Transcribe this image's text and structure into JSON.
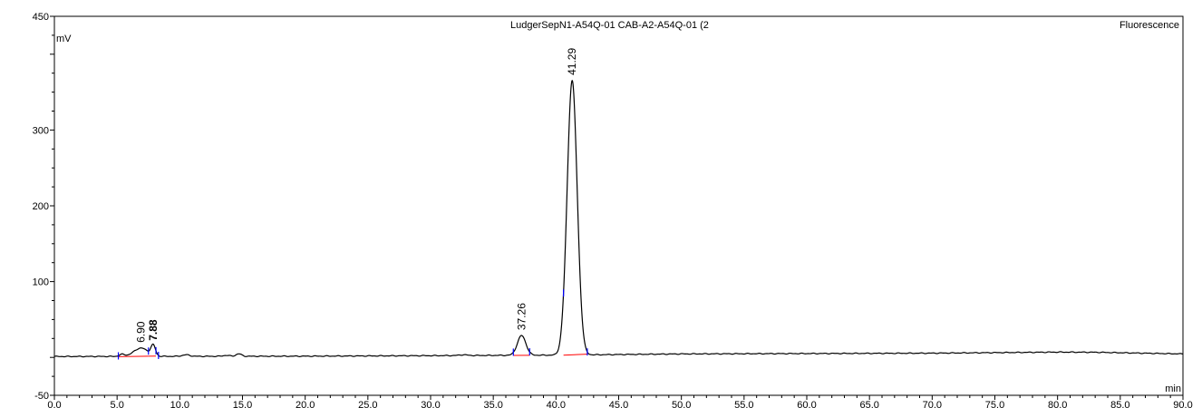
{
  "header": {
    "title": "LudgerSepN1-A54Q-01 CAB-A2-A54Q-01 (2",
    "detector": "Fluorescence"
  },
  "chart_data": {
    "type": "line",
    "xlabel": "min",
    "ylabel": "mV",
    "xlim": [
      0,
      90
    ],
    "ylim": [
      -50,
      450
    ],
    "x_ticks": [
      {
        "value": 0,
        "label": "0.0"
      },
      {
        "value": 5,
        "label": "5.0"
      },
      {
        "value": 10,
        "label": "10.0"
      },
      {
        "value": 15,
        "label": "15.0"
      },
      {
        "value": 20,
        "label": "20.0"
      },
      {
        "value": 25,
        "label": "25.0"
      },
      {
        "value": 30,
        "label": "30.0"
      },
      {
        "value": 35,
        "label": "35.0"
      },
      {
        "value": 40,
        "label": "40.0"
      },
      {
        "value": 45,
        "label": "45.0"
      },
      {
        "value": 50,
        "label": "50.0"
      },
      {
        "value": 55,
        "label": "55.0"
      },
      {
        "value": 60,
        "label": "60.0"
      },
      {
        "value": 65,
        "label": "65.0"
      },
      {
        "value": 70,
        "label": "70.0"
      },
      {
        "value": 75,
        "label": "75.0"
      },
      {
        "value": 80,
        "label": "80.0"
      },
      {
        "value": 85,
        "label": "85.0"
      },
      {
        "value": 90,
        "label": "90.0"
      }
    ],
    "y_ticks": [
      {
        "value": -50,
        "label": "-50"
      },
      {
        "value": 100,
        "label": "100"
      },
      {
        "value": 200,
        "label": "200"
      },
      {
        "value": 300,
        "label": "300"
      },
      {
        "value": 450,
        "label": "450"
      }
    ],
    "baseline": {
      "start": 1.2,
      "drift": [
        [
          0,
          1.2
        ],
        [
          20,
          1.6
        ],
        [
          40,
          3.0
        ],
        [
          50,
          4.6
        ],
        [
          70,
          5.6
        ],
        [
          80,
          7.0
        ],
        [
          83,
          6.8
        ],
        [
          90,
          4.6
        ]
      ]
    },
    "peaks": [
      {
        "rt": 5.4,
        "height": 2.6,
        "width": 0.22,
        "label": "",
        "bold": false
      },
      {
        "rt": 6.9,
        "height": 11,
        "width": 0.55,
        "label": "6.90",
        "bold": false
      },
      {
        "rt": 7.88,
        "height": 13.5,
        "width": 0.18,
        "label": "7.88",
        "bold": true
      },
      {
        "rt": 10.5,
        "height": 2,
        "width": 0.3,
        "label": "",
        "bold": false
      },
      {
        "rt": 13.7,
        "height": 1.2,
        "width": 0.25,
        "label": "",
        "bold": false
      },
      {
        "rt": 14.7,
        "height": 3.2,
        "width": 0.22,
        "label": "",
        "bold": false
      },
      {
        "rt": 32.6,
        "height": 1.0,
        "width": 0.3,
        "label": "",
        "bold": false
      },
      {
        "rt": 37.26,
        "height": 26,
        "width": 0.34,
        "label": "37.26",
        "bold": false
      },
      {
        "rt": 41.29,
        "height": 362,
        "width": 0.4,
        "label": "41.29",
        "bold": false
      }
    ],
    "integration_baselines": [
      [
        [
          5.1,
          1.0
        ],
        [
          7.5,
          1.6
        ]
      ],
      [
        [
          7.5,
          1.6
        ],
        [
          8.1,
          1.7
        ]
      ],
      [
        [
          36.6,
          2.6
        ],
        [
          37.9,
          2.8
        ]
      ],
      [
        [
          40.6,
          3.0
        ],
        [
          42.5,
          4.3
        ]
      ]
    ],
    "integration_marks": [
      5.1,
      7.5,
      8.1,
      8.3,
      36.6,
      37.9,
      40.6,
      42.5
    ],
    "colors": {
      "trace": "#000000",
      "baseline": "#ff0000",
      "marks": "#0000ff",
      "axis": "#000000"
    }
  }
}
